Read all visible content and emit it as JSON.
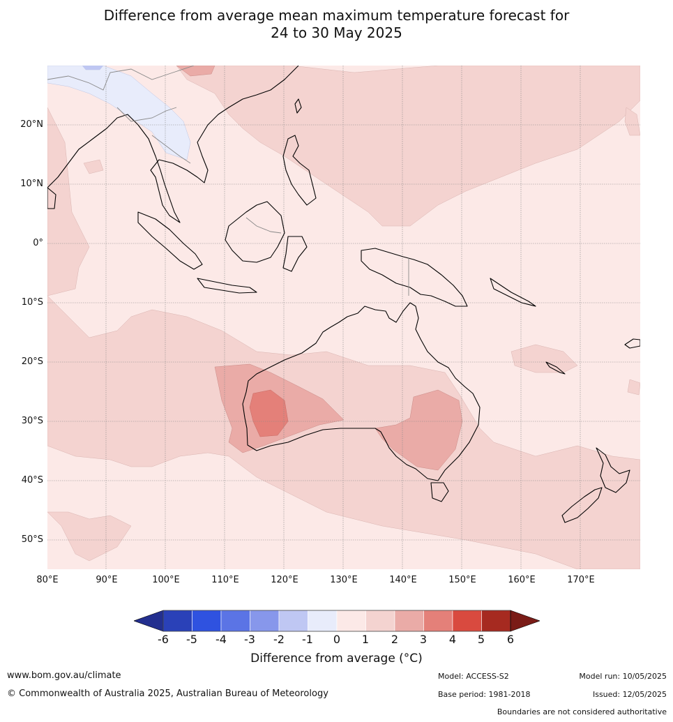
{
  "title": {
    "line1": "Difference from average mean maximum temperature forecast for",
    "line2": "24 to 30 May 2025"
  },
  "map": {
    "lat_labels": [
      "20°N",
      "10°N",
      "0°",
      "10°S",
      "20°S",
      "30°S",
      "40°S",
      "50°S"
    ],
    "lon_labels": [
      "80°E",
      "90°E",
      "100°E",
      "110°E",
      "120°E",
      "130°E",
      "140°E",
      "150°E",
      "160°E",
      "170°E"
    ]
  },
  "colorbar": {
    "ticks": [
      "-6",
      "-5",
      "-4",
      "-3",
      "-2",
      "-1",
      "0",
      "1",
      "2",
      "3",
      "4",
      "5",
      "6"
    ],
    "colors": [
      "#232f8f",
      "#2a41b8",
      "#2f52e0",
      "#5b74e5",
      "#8797eb",
      "#bfc7f3",
      "#e8ecfb",
      "#fce9e7",
      "#f4d3d0",
      "#eaaba7",
      "#e48079",
      "#d94a3f",
      "#a62a20",
      "#7a1c17"
    ],
    "label": "Difference from average (°C)"
  },
  "footer": {
    "website": "www.bom.gov.au/climate",
    "copyright": "© Commonwealth of Australia 2025, Australian Bureau of Meteorology",
    "model": "Model: ACCESS-S2",
    "base_period": "Base period: 1981-2018",
    "model_run": "Model run: 10/05/2025",
    "issued": "Issued: 12/05/2025",
    "disclaimer": "Boundaries are not considered authoritative"
  }
}
